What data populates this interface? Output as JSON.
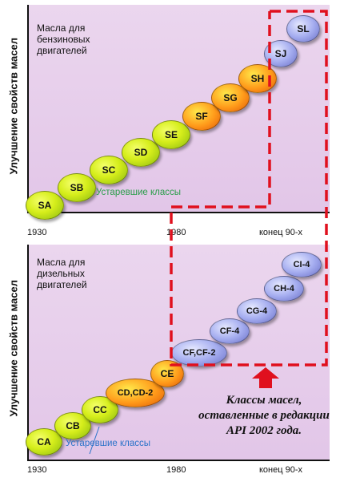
{
  "diagram": {
    "top_panel": {
      "heading": [
        "Масла для",
        "бензиновых",
        "двигателей"
      ],
      "obsolete_label": "Устаревшие классы",
      "ylabel": "Улучшение свойств масел",
      "x_ticks": [
        "1930",
        "1980",
        "конец 90-х"
      ],
      "classes": [
        "SA",
        "SB",
        "SC",
        "SD",
        "SE",
        "SF",
        "SG",
        "SH",
        "SJ",
        "SL"
      ]
    },
    "bottom_panel": {
      "heading": [
        "Масла для",
        "дизельных",
        "двигателей"
      ],
      "obsolete_label": "Устаревшие классы",
      "ylabel": "Улучшение свойств масел",
      "x_ticks": [
        "1930",
        "1980",
        "конец 90-х"
      ],
      "classes": [
        "CA",
        "CB",
        "CC",
        "CD,CD-2",
        "CE",
        "CF,CF-2",
        "CF-4",
        "CG-4",
        "CH-4",
        "CI-4"
      ]
    },
    "note": [
      "Классы масел,",
      "оставленные в редакции",
      "API 2002 года."
    ],
    "colors": {
      "highlight_border": "#e0101e",
      "arrow": "#e0101e",
      "obsolete_green": "#2a9d49",
      "obsolete_blue": "#2a73c9"
    }
  }
}
